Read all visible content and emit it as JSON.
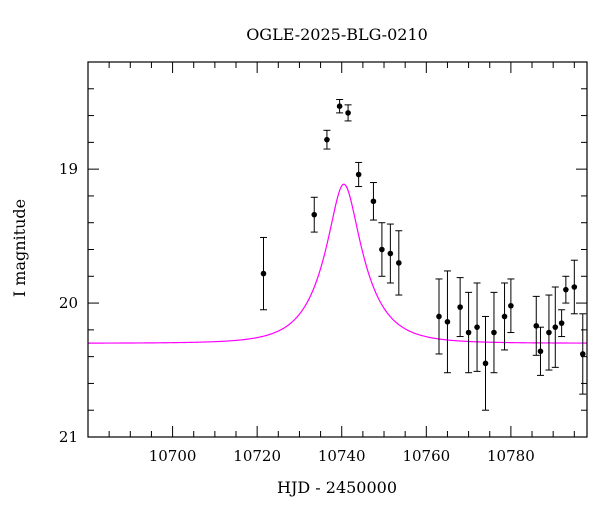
{
  "chart_data": {
    "type": "scatter",
    "title": "OGLE-2025-BLG-0210",
    "xlabel": "HJD - 2450000",
    "ylabel": "I magnitude",
    "xlim": [
      10680,
      10798
    ],
    "ylim": [
      21,
      18.2
    ],
    "y_inverted": true,
    "x_ticks": [
      10700,
      10720,
      10740,
      10760,
      10780
    ],
    "y_ticks": [
      19,
      20,
      21
    ],
    "grid": false,
    "model_color": "#ff00ff",
    "point_color": "#000000",
    "model": {
      "name": "",
      "t0": 10740.5,
      "tE": 9.0,
      "u0": 0.35,
      "baseline_mag": 20.3,
      "fs": 1.0
    },
    "series": [
      {
        "name": "",
        "x": [
          10721.5,
          10733.5,
          10736.5,
          10739.5,
          10741.5,
          10744.0,
          10747.5,
          10749.5,
          10751.5,
          10753.5,
          10763.0,
          10765.0,
          10768.0,
          10770.0,
          10772.0,
          10774.0,
          10776.0,
          10778.5,
          10780.0,
          10786.0,
          10787.0,
          10789.0,
          10790.5,
          10792.0,
          10793.0,
          10795.0,
          10797.0
        ],
        "y": [
          19.78,
          19.34,
          18.78,
          18.53,
          18.58,
          19.04,
          19.24,
          19.6,
          19.63,
          19.7,
          20.1,
          20.14,
          20.03,
          20.22,
          20.18,
          20.45,
          20.22,
          20.1,
          20.02,
          20.17,
          20.36,
          20.22,
          20.18,
          20.15,
          19.9,
          19.88,
          20.38
        ],
        "yerr": [
          0.27,
          0.13,
          0.07,
          0.05,
          0.06,
          0.09,
          0.14,
          0.2,
          0.22,
          0.24,
          0.28,
          0.38,
          0.22,
          0.3,
          0.33,
          0.35,
          0.3,
          0.25,
          0.2,
          0.22,
          0.18,
          0.28,
          0.3,
          0.1,
          0.1,
          0.2,
          0.3
        ]
      }
    ]
  }
}
